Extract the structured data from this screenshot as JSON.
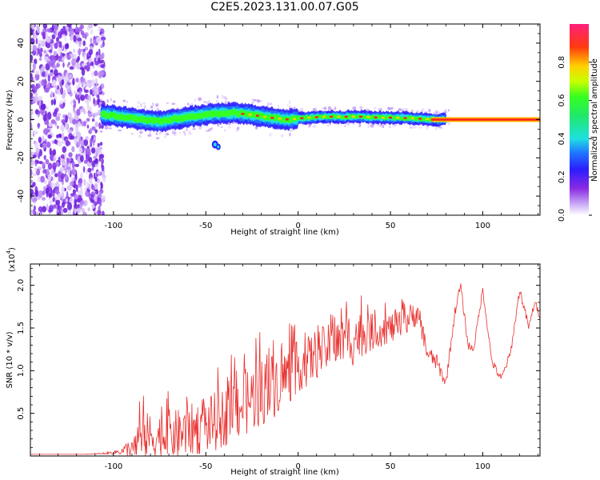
{
  "title": "C2E5.2023.131.00.07.G05",
  "colors": {
    "snr_line": "#e8302e",
    "spectrum_low": "#a855f7",
    "spectrum_mid": "#1e40ff",
    "spectrum_high": "#ff2020"
  },
  "chart_data": [
    {
      "type": "heatmap",
      "title": "C2E5.2023.131.00.07.G05",
      "xlabel": "Height of straight line (km)",
      "ylabel": "Frequency (Hz)",
      "xlim": [
        -145,
        131
      ],
      "ylim": [
        -50,
        50
      ],
      "xticks": [
        -100,
        -50,
        0,
        50,
        100
      ],
      "yticks": [
        -40,
        -20,
        0,
        20,
        40
      ],
      "xtick_labels": [
        "-100",
        "-50",
        "0",
        "50",
        "100"
      ],
      "ytick_labels": [
        "-40",
        "-20",
        "0",
        "20",
        "40"
      ],
      "colorbar": {
        "label": "Normalized spectral amplitude",
        "range": [
          0,
          1
        ],
        "ticks": [
          0.0,
          0.2,
          0.4,
          0.6,
          0.8
        ],
        "tick_labels": [
          "0.0",
          "0.2",
          "0.4",
          "0.6",
          "0.8"
        ]
      },
      "ridge": {
        "x": [
          -105,
          -95,
          -85,
          -75,
          -65,
          -55,
          -45,
          -35,
          -25,
          -15,
          -5,
          5,
          15,
          25,
          35,
          45,
          55,
          65,
          75,
          85,
          95,
          105,
          115,
          125,
          131
        ],
        "freq_hz": [
          2.5,
          1.5,
          0,
          -1,
          0.5,
          2,
          3,
          3.5,
          2.5,
          1,
          0,
          1,
          1.5,
          1.5,
          1.5,
          1,
          1,
          0.5,
          0,
          0,
          0,
          0,
          0,
          0,
          0
        ]
      },
      "scattered_noise_region_x": [
        -145,
        -105
      ],
      "secondary_blob": {
        "x": -45,
        "freq_hz": -13
      }
    },
    {
      "type": "line",
      "xlabel": "Height of straight line (km)",
      "ylabel": "SNR (10 * v/v)",
      "y_multiplier_label": "(x10",
      "y_multiplier_exponent": "4",
      "xlim": [
        -145,
        131
      ],
      "ylim": [
        0.0,
        2.25
      ],
      "xticks": [
        -100,
        -50,
        0,
        50,
        100
      ],
      "yticks": [
        0.5,
        1.0,
        1.5,
        2.0
      ],
      "xtick_labels": [
        "-100",
        "-50",
        "0",
        "50",
        "100"
      ],
      "ytick_labels": [
        "0.5",
        "1.0",
        "1.5",
        "2.0"
      ],
      "series": [
        {
          "color": "#e8302e",
          "x": [
            -145,
            -130,
            -115,
            -105,
            -100,
            -95,
            -90,
            -85,
            -80,
            -75,
            -70,
            -65,
            -60,
            -55,
            -50,
            -45,
            -40,
            -35,
            -30,
            -25,
            -20,
            -15,
            -10,
            -5,
            0,
            5,
            10,
            15,
            20,
            25,
            30,
            35,
            40,
            45,
            50,
            55,
            60,
            65,
            70,
            75,
            80,
            85,
            88,
            92,
            95,
            100,
            105,
            110,
            115,
            120,
            125,
            128,
            131
          ],
          "mean": [
            0.02,
            0.02,
            0.02,
            0.03,
            0.04,
            0.06,
            0.1,
            0.2,
            0.22,
            0.22,
            0.25,
            0.25,
            0.3,
            0.32,
            0.35,
            0.4,
            0.45,
            0.55,
            0.6,
            0.68,
            0.75,
            0.8,
            0.9,
            0.95,
            1.05,
            1.1,
            1.2,
            1.25,
            1.3,
            1.35,
            1.4,
            1.42,
            1.45,
            1.48,
            1.5,
            1.52,
            1.6,
            1.7,
            1.2,
            1.1,
            0.85,
            1.7,
            2.0,
            1.3,
            1.25,
            1.95,
            1.1,
            0.9,
            1.2,
            1.95,
            1.5,
            1.8,
            1.65
          ],
          "noise_amp": [
            0.0,
            0.0,
            0.0,
            0.01,
            0.02,
            0.05,
            0.15,
            0.3,
            0.3,
            0.28,
            0.3,
            0.3,
            0.3,
            0.32,
            0.32,
            0.35,
            0.35,
            0.38,
            0.4,
            0.4,
            0.4,
            0.4,
            0.38,
            0.35,
            0.3,
            0.3,
            0.3,
            0.28,
            0.28,
            0.3,
            0.35,
            0.25,
            0.22,
            0.2,
            0.18,
            0.18,
            0.18,
            0.15,
            0.1,
            0.1,
            0.06,
            0.06,
            0.06,
            0.05,
            0.05,
            0.05,
            0.05,
            0.05,
            0.05,
            0.05,
            0.05,
            0.05,
            0.05
          ]
        }
      ]
    }
  ]
}
